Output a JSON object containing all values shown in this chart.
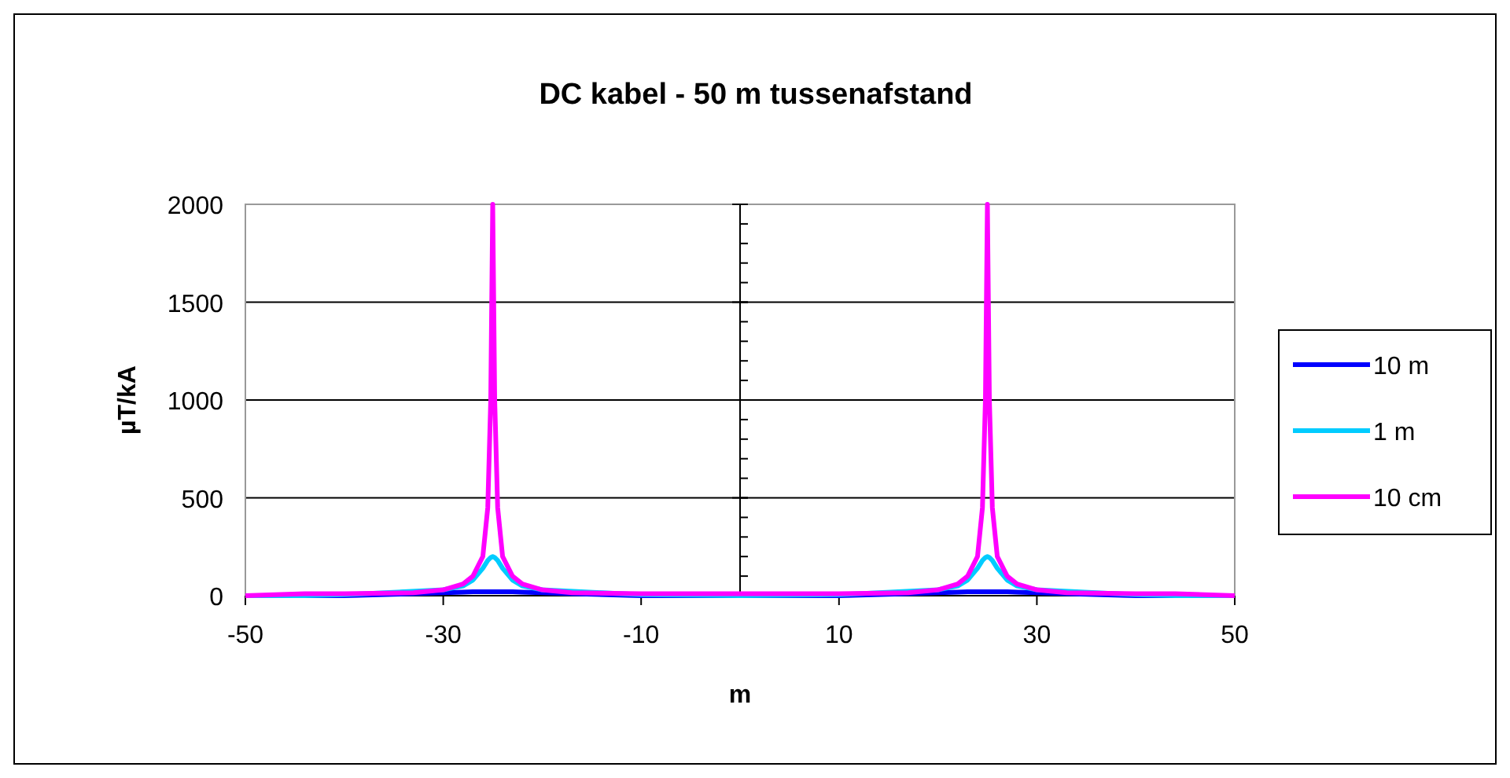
{
  "chart_data": {
    "type": "line",
    "title": "DC kabel - 50 m tussenafstand",
    "xlabel": "m",
    "ylabel": "µT/kA",
    "x": [
      -50,
      -44,
      -40,
      -33,
      -30,
      -28,
      -27,
      -26,
      -25.5,
      -25.2,
      -25,
      -24.8,
      -24.5,
      -24,
      -23,
      -22,
      -20,
      -17,
      -10,
      0,
      10,
      17,
      20,
      22,
      23,
      24,
      24.5,
      24.8,
      25,
      25.2,
      25.5,
      26,
      27,
      28,
      30,
      33,
      40,
      44,
      50
    ],
    "series": [
      {
        "name": "10 m",
        "color": "#0000ff",
        "values": [
          0,
          0,
          0,
          10,
          15,
          18,
          20,
          20,
          20,
          20,
          20,
          20,
          20,
          20,
          20,
          18,
          15,
          10,
          0,
          0,
          0,
          10,
          15,
          18,
          20,
          20,
          20,
          20,
          20,
          20,
          20,
          20,
          20,
          18,
          15,
          10,
          0,
          0,
          0
        ]
      },
      {
        "name": "1 m",
        "color": "#00ccff",
        "values": [
          0,
          0,
          5,
          null,
          30,
          50,
          80,
          140,
          180,
          195,
          200,
          195,
          180,
          140,
          80,
          50,
          30,
          null,
          5,
          0,
          5,
          null,
          30,
          50,
          80,
          140,
          180,
          195,
          200,
          195,
          180,
          140,
          80,
          50,
          30,
          null,
          5,
          0,
          0
        ]
      },
      {
        "name": "10 cm",
        "color": "#ff00ff",
        "values": [
          0,
          10,
          10,
          15,
          30,
          60,
          100,
          200,
          450,
          1000,
          2000,
          1000,
          450,
          200,
          100,
          60,
          30,
          15,
          10,
          10,
          10,
          15,
          30,
          60,
          100,
          200,
          450,
          1000,
          2000,
          1000,
          450,
          200,
          100,
          60,
          30,
          15,
          10,
          10,
          0
        ]
      }
    ],
    "xlim": [
      -50,
      50
    ],
    "xticks": [
      -50,
      -30,
      -10,
      10,
      30,
      50
    ],
    "ylim": [
      0,
      2000
    ],
    "yticks": [
      0,
      500,
      1000,
      1500,
      2000
    ],
    "grid": "y",
    "legend": "right",
    "line_style": "solid",
    "marker": "none"
  }
}
